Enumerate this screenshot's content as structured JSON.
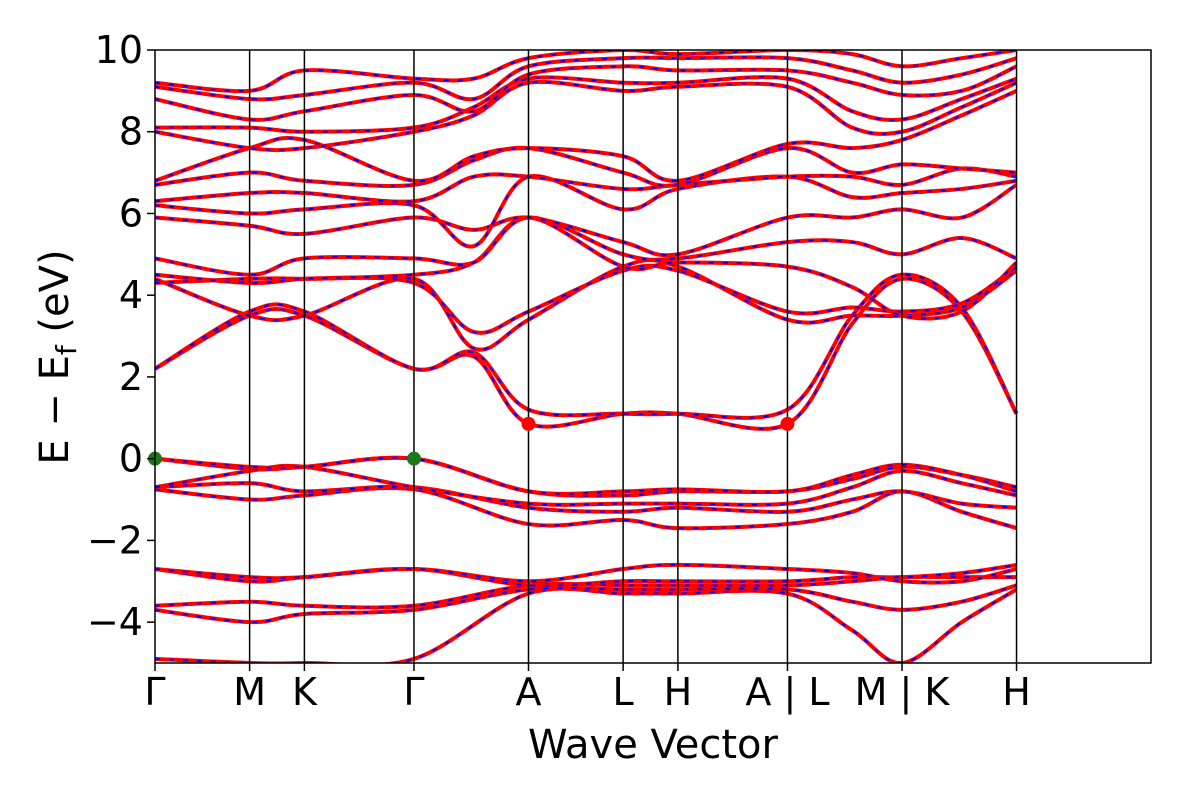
{
  "chart_data": {
    "type": "line",
    "xlabel": "Wave Vector",
    "ylabel_main": "E − E",
    "ylabel_sub": "f",
    "ylabel_unit": " (eV)",
    "ylim": [
      -5,
      10
    ],
    "yticks": [
      -4,
      -2,
      0,
      2,
      4,
      6,
      8,
      10
    ],
    "ytick_labels": [
      "−4",
      "−2",
      "0",
      "2",
      "4",
      "6",
      "8",
      "10"
    ],
    "xlim": [
      0,
      10
    ],
    "kpoints": [
      {
        "pos": 0.0,
        "label": "Γ"
      },
      {
        "pos": 0.95,
        "label": "M"
      },
      {
        "pos": 1.5,
        "label": "K"
      },
      {
        "pos": 2.6,
        "label": "Γ"
      },
      {
        "pos": 3.75,
        "label": "A"
      },
      {
        "pos": 4.7,
        "label": "L"
      },
      {
        "pos": 5.25,
        "label": "H"
      },
      {
        "pos": 6.35,
        "label": "A | L"
      },
      {
        "pos": 7.5,
        "label": "M | K"
      },
      {
        "pos": 8.65,
        "label": "H"
      }
    ],
    "line_colors": {
      "primary": "#ff0000",
      "secondary": "#0000ff"
    },
    "markers": [
      {
        "x": 0.0,
        "y": 0.0,
        "color": "#1a7a1a",
        "kind": "VBM"
      },
      {
        "x": 2.6,
        "y": 0.0,
        "color": "#1a7a1a",
        "kind": "VBM"
      },
      {
        "x": 3.75,
        "y": 0.85,
        "color": "#ff0000",
        "kind": "CBM"
      },
      {
        "x": 6.35,
        "y": 0.85,
        "color": "#ff0000",
        "kind": "CBM"
      }
    ],
    "bands": [
      {
        "x": [
          0,
          0.95,
          1.5,
          2.6,
          3.75,
          4.7,
          5.25,
          6.35,
          7.0,
          7.5,
          8.1,
          8.65
        ],
        "y": [
          -4.9,
          -5.0,
          -5.0,
          -4.9,
          -3.3,
          -3.3,
          -3.3,
          -3.3,
          -4.2,
          -5.0,
          -4.0,
          -3.2
        ]
      },
      {
        "x": [
          0,
          0.95,
          1.5,
          2.6,
          3.75,
          4.7,
          5.25,
          6.35,
          7.0,
          7.5,
          8.1,
          8.65
        ],
        "y": [
          -3.7,
          -4.0,
          -3.8,
          -3.7,
          -3.2,
          -3.2,
          -3.2,
          -3.2,
          -3.5,
          -3.7,
          -3.5,
          -3.1
        ]
      },
      {
        "x": [
          0,
          0.95,
          1.5,
          2.6,
          3.75,
          4.7,
          5.25,
          6.35,
          7.0,
          7.5,
          8.1,
          8.65
        ],
        "y": [
          -3.6,
          -3.5,
          -3.6,
          -3.6,
          -3.1,
          -3.1,
          -3.1,
          -3.1,
          -3.0,
          -2.9,
          -2.9,
          -2.9
        ]
      },
      {
        "x": [
          0,
          0.95,
          1.5,
          2.6,
          3.75,
          4.7,
          5.25,
          6.35,
          7.0,
          7.5,
          8.1,
          8.65
        ],
        "y": [
          -2.7,
          -3.0,
          -2.9,
          -2.7,
          -3.1,
          -3.0,
          -3.0,
          -3.0,
          -2.9,
          -2.9,
          -2.8,
          -2.6
        ]
      },
      {
        "x": [
          0,
          0.95,
          1.5,
          2.6,
          3.75,
          4.7,
          5.25,
          6.35,
          7.0,
          7.5,
          8.1,
          8.65
        ],
        "y": [
          -2.7,
          -2.9,
          -2.9,
          -2.7,
          -3.0,
          -2.7,
          -2.6,
          -2.7,
          -2.8,
          -3.0,
          -3.0,
          -2.7
        ]
      },
      {
        "x": [
          0,
          0.95,
          1.5,
          2.6,
          3.75,
          4.7,
          5.25,
          6.35,
          7.0,
          7.5,
          8.1,
          8.65
        ],
        "y": [
          -0.75,
          -1.0,
          -0.9,
          -0.75,
          -1.6,
          -1.5,
          -1.7,
          -1.6,
          -1.3,
          -0.8,
          -1.3,
          -1.7
        ]
      },
      {
        "x": [
          0,
          0.95,
          1.5,
          2.6,
          3.75,
          4.7,
          5.25,
          6.35,
          7.0,
          7.5,
          8.1,
          8.65
        ],
        "y": [
          -0.7,
          -0.6,
          -0.8,
          -0.7,
          -1.2,
          -1.3,
          -1.2,
          -1.3,
          -1.0,
          -0.8,
          -1.1,
          -1.2
        ]
      },
      {
        "x": [
          0,
          0.95,
          1.5,
          2.6,
          3.75,
          4.7,
          5.25,
          6.35,
          7.0,
          7.5,
          8.1,
          8.65
        ],
        "y": [
          -0.7,
          -0.3,
          -0.2,
          -0.7,
          -1.1,
          -1.1,
          -1.1,
          -1.1,
          -0.7,
          -0.3,
          -0.6,
          -0.9
        ]
      },
      {
        "x": [
          0,
          0.95,
          1.5,
          2.6,
          3.75,
          4.7,
          5.25,
          6.35,
          7.0,
          7.5,
          8.1,
          8.65
        ],
        "y": [
          0.0,
          -0.25,
          -0.2,
          0.0,
          -0.8,
          -0.9,
          -0.8,
          -0.8,
          -0.5,
          -0.2,
          -0.4,
          -0.7
        ]
      },
      {
        "x": [
          0,
          0.95,
          1.5,
          2.6,
          3.75,
          4.7,
          5.25,
          6.35,
          7.0,
          7.5,
          8.1,
          8.65
        ],
        "y": [
          0.0,
          -0.2,
          -0.2,
          0.0,
          -0.8,
          -0.8,
          -0.75,
          -0.8,
          -0.4,
          -0.15,
          -0.4,
          -0.8
        ]
      },
      {
        "x": [
          0,
          0.95,
          1.5,
          2.6,
          3.2,
          3.75,
          4.7,
          5.25,
          6.35,
          7.0,
          7.5,
          8.1,
          8.65
        ],
        "y": [
          2.2,
          3.5,
          3.5,
          2.2,
          2.5,
          0.85,
          1.1,
          1.1,
          0.85,
          3.3,
          4.4,
          3.6,
          1.1
        ]
      },
      {
        "x": [
          0,
          0.95,
          1.5,
          2.6,
          3.2,
          3.75,
          4.7,
          5.25,
          6.35,
          7.0,
          7.5,
          8.1,
          8.65
        ],
        "y": [
          2.2,
          3.6,
          3.6,
          2.2,
          2.6,
          1.2,
          1.1,
          1.1,
          1.2,
          3.5,
          4.5,
          3.7,
          1.1
        ]
      },
      {
        "x": [
          0,
          0.95,
          1.5,
          2.6,
          3.2,
          3.75,
          4.7,
          5.25,
          6.35,
          7.0,
          7.5,
          8.1,
          8.65
        ],
        "y": [
          4.4,
          3.5,
          3.5,
          4.4,
          2.7,
          3.4,
          4.7,
          4.7,
          3.4,
          3.5,
          3.5,
          3.7,
          4.6
        ]
      },
      {
        "x": [
          0,
          0.95,
          1.5,
          2.6,
          3.2,
          3.75,
          4.7,
          5.25,
          6.35,
          7.0,
          7.5,
          8.1,
          8.65
        ],
        "y": [
          4.3,
          4.4,
          4.4,
          4.3,
          3.1,
          3.6,
          4.6,
          4.6,
          3.6,
          3.7,
          3.6,
          3.8,
          4.7
        ]
      },
      {
        "x": [
          0,
          0.95,
          1.5,
          2.6,
          3.2,
          3.75,
          4.7,
          5.25,
          6.35,
          7.0,
          7.5,
          8.1,
          8.65
        ],
        "y": [
          4.5,
          4.3,
          4.4,
          4.5,
          4.8,
          5.9,
          4.7,
          4.8,
          4.7,
          4.2,
          3.5,
          3.6,
          4.8
        ]
      },
      {
        "x": [
          0,
          0.95,
          1.5,
          2.6,
          3.2,
          3.75,
          4.7,
          5.25,
          6.35,
          7.0,
          7.5,
          8.1,
          8.65
        ],
        "y": [
          4.9,
          4.5,
          4.9,
          4.9,
          4.8,
          5.9,
          5.0,
          4.9,
          5.3,
          5.3,
          5.0,
          5.4,
          4.9
        ]
      },
      {
        "x": [
          0,
          0.95,
          1.5,
          2.6,
          3.2,
          3.75,
          4.7,
          5.25,
          6.35,
          7.0,
          7.5,
          8.1,
          8.65
        ],
        "y": [
          5.9,
          5.7,
          5.5,
          5.9,
          5.6,
          5.9,
          5.3,
          5.0,
          5.9,
          5.9,
          6.1,
          5.9,
          6.7
        ]
      },
      {
        "x": [
          0,
          0.95,
          1.5,
          2.6,
          3.2,
          3.75,
          4.7,
          5.25,
          6.35,
          7.0,
          7.5,
          8.1,
          8.65
        ],
        "y": [
          6.2,
          6.0,
          6.1,
          6.2,
          5.2,
          6.9,
          6.1,
          6.6,
          6.9,
          6.4,
          6.5,
          6.6,
          6.8
        ]
      },
      {
        "x": [
          0,
          0.95,
          1.5,
          2.6,
          3.2,
          3.75,
          4.7,
          5.25,
          6.35,
          7.0,
          7.5,
          8.1,
          8.65
        ],
        "y": [
          6.3,
          6.5,
          6.5,
          6.3,
          6.9,
          6.9,
          6.6,
          6.7,
          6.9,
          6.9,
          6.7,
          7.1,
          6.9
        ]
      },
      {
        "x": [
          0,
          0.95,
          1.5,
          2.6,
          3.2,
          3.75,
          4.7,
          5.25,
          6.35,
          7.0,
          7.5,
          8.1,
          8.65
        ],
        "y": [
          6.7,
          7.0,
          6.8,
          6.7,
          7.3,
          7.6,
          7.0,
          6.7,
          7.6,
          7.0,
          7.2,
          7.1,
          7.0
        ]
      },
      {
        "x": [
          0,
          0.95,
          1.5,
          2.6,
          3.2,
          3.75,
          4.7,
          5.25,
          6.35,
          7.0,
          7.5,
          8.1,
          8.65
        ],
        "y": [
          6.8,
          7.6,
          7.8,
          6.8,
          7.4,
          7.6,
          7.4,
          6.8,
          7.7,
          7.6,
          7.8,
          8.4,
          9.0
        ]
      },
      {
        "x": [
          0,
          0.95,
          1.5,
          2.6,
          3.2,
          3.75,
          4.7,
          5.25,
          6.35,
          7.0,
          7.5,
          8.1,
          8.65
        ],
        "y": [
          8.0,
          7.6,
          7.6,
          8.0,
          8.4,
          9.2,
          9.0,
          9.1,
          9.1,
          8.1,
          8.0,
          8.6,
          9.2
        ]
      },
      {
        "x": [
          0,
          0.95,
          1.5,
          2.6,
          3.2,
          3.75,
          4.7,
          5.25,
          6.35,
          7.0,
          7.5,
          8.1,
          8.65
        ],
        "y": [
          8.1,
          8.1,
          8.0,
          8.1,
          8.6,
          9.3,
          9.2,
          9.2,
          9.3,
          8.5,
          8.3,
          8.8,
          9.3
        ]
      },
      {
        "x": [
          0,
          0.95,
          1.5,
          2.6,
          3.2,
          3.75,
          4.7,
          5.25,
          6.35,
          7.0,
          7.5,
          8.1,
          8.65
        ],
        "y": [
          8.8,
          8.3,
          8.5,
          8.9,
          8.5,
          9.4,
          9.6,
          9.5,
          9.5,
          9.2,
          8.9,
          9.0,
          9.6
        ]
      },
      {
        "x": [
          0,
          0.95,
          1.5,
          2.6,
          3.2,
          3.75,
          4.7,
          5.25,
          6.35,
          7.0,
          7.5,
          8.1,
          8.65
        ],
        "y": [
          9.1,
          8.8,
          8.9,
          9.2,
          8.8,
          9.6,
          9.8,
          9.8,
          9.8,
          9.5,
          9.2,
          9.4,
          9.8
        ]
      },
      {
        "x": [
          0,
          0.95,
          1.5,
          2.6,
          3.2,
          3.75,
          4.7,
          5.25,
          6.35,
          7.0,
          7.5,
          8.1,
          8.65
        ],
        "y": [
          9.2,
          9.0,
          9.5,
          9.3,
          9.3,
          9.8,
          10.0,
          9.9,
          10.0,
          9.9,
          9.6,
          9.8,
          10.0
        ]
      }
    ]
  }
}
